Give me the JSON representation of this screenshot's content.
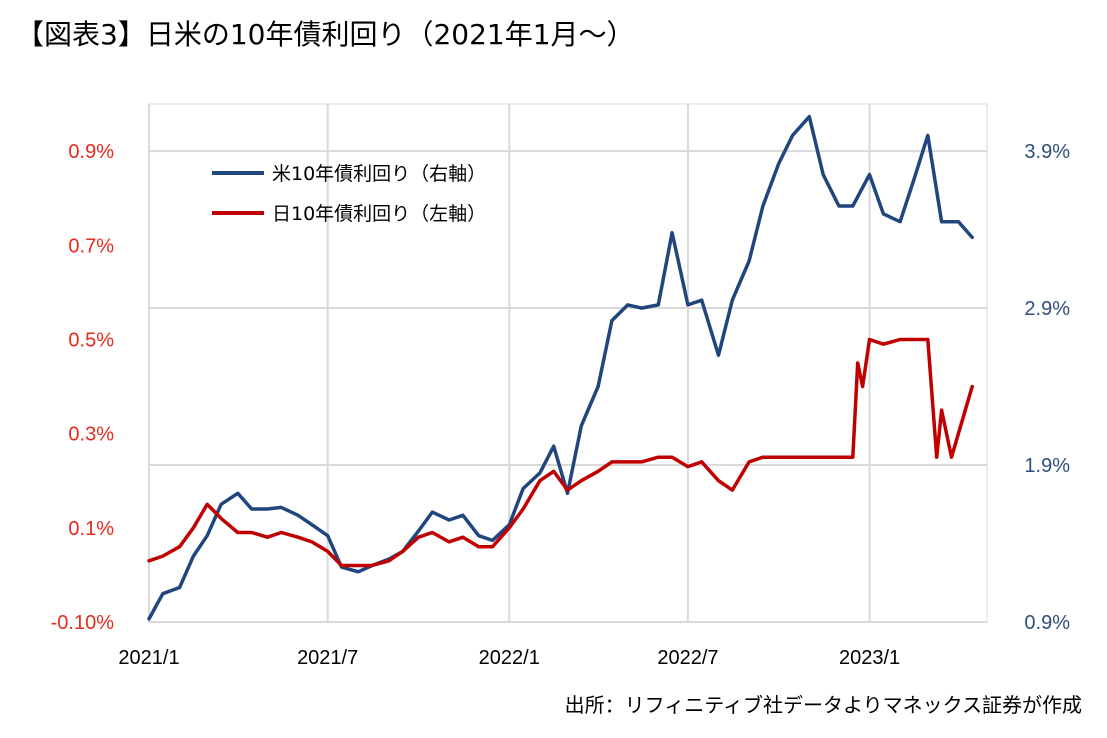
{
  "title": "【図表3】日米の10年債利回り（2021年1月～）",
  "source": "出所：リフィニティブ社データよりマネックス証券が作成",
  "colors": {
    "us": "#1f467d",
    "jp": "#c00000",
    "left_ticks": "#e8291c",
    "right_ticks": "#2e4f7c",
    "grid": "#d9d9d9"
  },
  "chart_data": {
    "type": "line",
    "title": "【図表3】日米の10年債利回り（2021年1月～）",
    "x_ticks": [
      "2021/1",
      "2021/7",
      "2022/1",
      "2022/7",
      "2023/1"
    ],
    "x_range": [
      "2021-01-01",
      "2023-04-30"
    ],
    "y_left": {
      "ticks": [
        "0.9%",
        "0.7%",
        "0.5%",
        "0.3%",
        "0.1%",
        "-0.10%"
      ],
      "range": [
        -0.1,
        1.0
      ],
      "unit": "%"
    },
    "y_right": {
      "ticks": [
        "3.9%",
        "2.9%",
        "1.9%",
        "0.9%"
      ],
      "range": [
        0.9,
        4.2
      ],
      "unit": "%"
    },
    "grid": true,
    "legend_position": "top-left",
    "series": [
      {
        "name": "米10年債利回り（右軸）",
        "axis": "right",
        "color": "#1f467d",
        "x": [
          "2021-01-01",
          "2021-01-15",
          "2021-02-01",
          "2021-02-15",
          "2021-03-01",
          "2021-03-15",
          "2021-04-01",
          "2021-04-15",
          "2021-05-01",
          "2021-05-15",
          "2021-06-01",
          "2021-06-15",
          "2021-07-01",
          "2021-07-15",
          "2021-08-01",
          "2021-08-15",
          "2021-09-01",
          "2021-09-15",
          "2021-10-01",
          "2021-10-15",
          "2021-11-01",
          "2021-11-15",
          "2021-12-01",
          "2021-12-15",
          "2022-01-01",
          "2022-01-15",
          "2022-02-01",
          "2022-02-15",
          "2022-03-01",
          "2022-03-15",
          "2022-04-01",
          "2022-04-15",
          "2022-05-01",
          "2022-05-15",
          "2022-06-01",
          "2022-06-15",
          "2022-07-01",
          "2022-07-15",
          "2022-08-01",
          "2022-08-15",
          "2022-09-01",
          "2022-09-15",
          "2022-10-01",
          "2022-10-15",
          "2022-11-01",
          "2022-11-15",
          "2022-12-01",
          "2022-12-15",
          "2023-01-01",
          "2023-01-15",
          "2023-02-01",
          "2023-02-15",
          "2023-03-01",
          "2023-03-15",
          "2023-04-01",
          "2023-04-15"
        ],
        "values": [
          0.92,
          1.08,
          1.12,
          1.32,
          1.45,
          1.65,
          1.72,
          1.62,
          1.62,
          1.63,
          1.58,
          1.52,
          1.45,
          1.25,
          1.22,
          1.26,
          1.3,
          1.35,
          1.48,
          1.6,
          1.55,
          1.58,
          1.45,
          1.42,
          1.52,
          1.75,
          1.85,
          2.02,
          1.72,
          2.15,
          2.4,
          2.82,
          2.92,
          2.9,
          2.92,
          3.38,
          2.92,
          2.95,
          2.6,
          2.95,
          3.2,
          3.55,
          3.82,
          4.0,
          4.12,
          3.75,
          3.55,
          3.55,
          3.75,
          3.5,
          3.45,
          3.72,
          4.0,
          3.45,
          3.45,
          3.35
        ]
      },
      {
        "name": "日10年債利回り（左軸）",
        "axis": "left",
        "color": "#c00000",
        "x": [
          "2021-01-01",
          "2021-01-15",
          "2021-02-01",
          "2021-02-15",
          "2021-03-01",
          "2021-03-15",
          "2021-04-01",
          "2021-04-15",
          "2021-05-01",
          "2021-05-15",
          "2021-06-01",
          "2021-06-15",
          "2021-07-01",
          "2021-07-15",
          "2021-08-01",
          "2021-08-15",
          "2021-09-01",
          "2021-09-15",
          "2021-10-01",
          "2021-10-15",
          "2021-11-01",
          "2021-11-15",
          "2021-12-01",
          "2021-12-15",
          "2022-01-01",
          "2022-01-15",
          "2022-02-01",
          "2022-02-15",
          "2022-03-01",
          "2022-03-15",
          "2022-04-01",
          "2022-04-15",
          "2022-05-01",
          "2022-05-15",
          "2022-06-01",
          "2022-06-15",
          "2022-07-01",
          "2022-07-15",
          "2022-08-01",
          "2022-08-15",
          "2022-09-01",
          "2022-09-15",
          "2022-10-01",
          "2022-10-15",
          "2022-11-01",
          "2022-11-15",
          "2022-12-01",
          "2022-12-15",
          "2022-12-20",
          "2022-12-25",
          "2023-01-01",
          "2023-01-15",
          "2023-02-01",
          "2023-02-15",
          "2023-03-01",
          "2023-03-10",
          "2023-03-15",
          "2023-03-25",
          "2023-04-01",
          "2023-04-15"
        ],
        "values": [
          0.03,
          0.04,
          0.06,
          0.1,
          0.15,
          0.12,
          0.09,
          0.09,
          0.08,
          0.09,
          0.08,
          0.07,
          0.05,
          0.02,
          0.02,
          0.02,
          0.03,
          0.05,
          0.08,
          0.09,
          0.07,
          0.08,
          0.06,
          0.06,
          0.1,
          0.14,
          0.2,
          0.22,
          0.18,
          0.2,
          0.22,
          0.24,
          0.24,
          0.24,
          0.25,
          0.25,
          0.23,
          0.24,
          0.2,
          0.18,
          0.24,
          0.25,
          0.25,
          0.25,
          0.25,
          0.25,
          0.25,
          0.25,
          0.45,
          0.4,
          0.5,
          0.49,
          0.5,
          0.5,
          0.5,
          0.25,
          0.35,
          0.25,
          0.3,
          0.4
        ]
      }
    ]
  }
}
